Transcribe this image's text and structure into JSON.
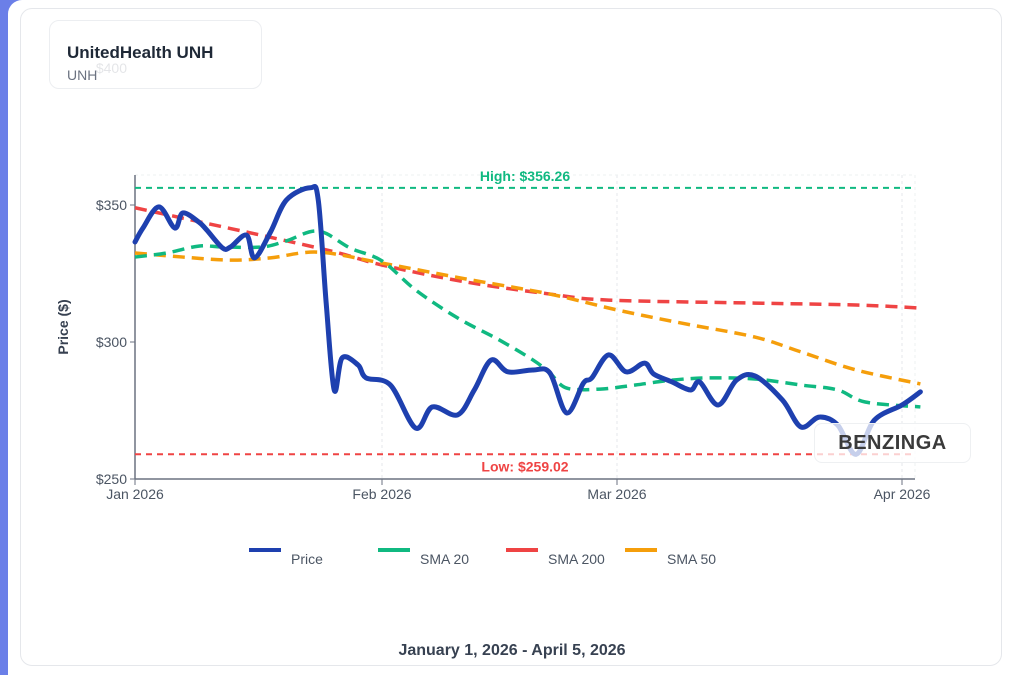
{
  "header": {
    "title": "UnitedHealth UNH",
    "ticker": "UNH"
  },
  "footer": {
    "date_range": "January 1, 2026 - April 5, 2026"
  },
  "watermark": "BENZINGA",
  "chart_data": {
    "type": "line",
    "ylabel": "Price ($)",
    "xlabel": "",
    "ylim": [
      250,
      361
    ],
    "yticks": [
      {
        "v": 250,
        "label": "$250"
      },
      {
        "v": 300,
        "label": "$300"
      },
      {
        "v": 350,
        "label": "$350"
      },
      {
        "v": 400,
        "label": "$400"
      }
    ],
    "xticks": [
      {
        "date": "2026-01-01",
        "label": "Jan 2026"
      },
      {
        "date": "2026-02-01",
        "label": "Feb 2026"
      },
      {
        "date": "2026-03-01",
        "label": "Mar 2026"
      },
      {
        "date": "2026-04-01",
        "label": "Apr 2026"
      }
    ],
    "grid": true,
    "legend_position": "bottom",
    "high": {
      "value": 356.26,
      "label": "High: $356.26",
      "color": "#10b981"
    },
    "low": {
      "value": 259.02,
      "label": "Low: $259.02",
      "color": "#ef4444"
    },
    "series": [
      {
        "name": "Price",
        "color": "#1e40af",
        "dashed": false,
        "points": [
          [
            "2026-01-01",
            336.5
          ],
          [
            "2026-01-02",
            341.6
          ],
          [
            "2026-01-04",
            349.3
          ],
          [
            "2026-01-06",
            341.6
          ],
          [
            "2026-01-07",
            347.1
          ],
          [
            "2026-01-09",
            343.8
          ],
          [
            "2026-01-10",
            340.9
          ],
          [
            "2026-01-12",
            334.3
          ],
          [
            "2026-01-13",
            334.7
          ],
          [
            "2026-01-15",
            339.0
          ],
          [
            "2026-01-16",
            330.7
          ],
          [
            "2026-01-18",
            340.1
          ],
          [
            "2026-01-20",
            351.8
          ],
          [
            "2026-01-23",
            356.3
          ],
          [
            "2026-01-24",
            351.8
          ],
          [
            "2026-01-25",
            314.0
          ],
          [
            "2026-01-26",
            282.5
          ],
          [
            "2026-01-27",
            294.2
          ],
          [
            "2026-01-29",
            291.6
          ],
          [
            "2026-01-30",
            286.9
          ],
          [
            "2026-02-02",
            284.3
          ],
          [
            "2026-02-05",
            268.6
          ],
          [
            "2026-02-07",
            276.3
          ],
          [
            "2026-02-10",
            273.4
          ],
          [
            "2026-02-12",
            282.5
          ],
          [
            "2026-02-14",
            293.4
          ],
          [
            "2026-02-16",
            289.1
          ],
          [
            "2026-02-19",
            289.8
          ],
          [
            "2026-02-21",
            288.7
          ],
          [
            "2026-02-23",
            274.1
          ],
          [
            "2026-02-25",
            285.0
          ],
          [
            "2026-02-26",
            286.9
          ],
          [
            "2026-02-28",
            295.3
          ],
          [
            "2026-03-02",
            289.1
          ],
          [
            "2026-03-04",
            292.3
          ],
          [
            "2026-03-05",
            288.3
          ],
          [
            "2026-03-07",
            285.4
          ],
          [
            "2026-03-09",
            282.5
          ],
          [
            "2026-03-10",
            285.4
          ],
          [
            "2026-03-12",
            277.0
          ],
          [
            "2026-03-14",
            286.1
          ],
          [
            "2026-03-16",
            287.6
          ],
          [
            "2026-03-19",
            278.8
          ],
          [
            "2026-03-21",
            269.0
          ],
          [
            "2026-03-23",
            272.6
          ],
          [
            "2026-03-25",
            269.7
          ],
          [
            "2026-03-27",
            259.0
          ],
          [
            "2026-03-29",
            271.5
          ],
          [
            "2026-04-01",
            277.0
          ],
          [
            "2026-04-03",
            281.8
          ]
        ]
      },
      {
        "name": "SMA 20",
        "color": "#10b981",
        "dashed": true,
        "points": [
          [
            "2026-01-01",
            331.0
          ],
          [
            "2026-01-05",
            332.5
          ],
          [
            "2026-01-09",
            335.0
          ],
          [
            "2026-01-12",
            334.7
          ],
          [
            "2026-01-17",
            334.7
          ],
          [
            "2026-01-20",
            336.9
          ],
          [
            "2026-01-24",
            340.5
          ],
          [
            "2026-01-28",
            334.3
          ],
          [
            "2026-02-01",
            329.6
          ],
          [
            "2026-02-05",
            319.0
          ],
          [
            "2026-02-10",
            308.8
          ],
          [
            "2026-02-15",
            300.7
          ],
          [
            "2026-02-19",
            293.4
          ],
          [
            "2026-02-21",
            288.7
          ],
          [
            "2026-02-23",
            283.2
          ],
          [
            "2026-02-27",
            282.8
          ],
          [
            "2026-03-03",
            284.3
          ],
          [
            "2026-03-07",
            286.1
          ],
          [
            "2026-03-11",
            286.9
          ],
          [
            "2026-03-16",
            286.5
          ],
          [
            "2026-03-21",
            284.3
          ],
          [
            "2026-03-25",
            282.5
          ],
          [
            "2026-03-28",
            278.1
          ],
          [
            "2026-04-03",
            276.3
          ]
        ]
      },
      {
        "name": "SMA 200",
        "color": "#ef4444",
        "dashed": true,
        "points": [
          [
            "2026-01-01",
            349.0
          ],
          [
            "2026-01-24",
            334.3
          ],
          [
            "2026-02-01",
            328.1
          ],
          [
            "2026-02-11",
            321.9
          ],
          [
            "2026-02-21",
            317.5
          ],
          [
            "2026-02-28",
            315.3
          ],
          [
            "2026-03-16",
            314.2
          ],
          [
            "2026-03-27",
            313.5
          ],
          [
            "2026-04-03",
            312.4
          ]
        ]
      },
      {
        "name": "SMA 50",
        "color": "#f59e0b",
        "dashed": true,
        "points": [
          [
            "2026-01-01",
            332.5
          ],
          [
            "2026-01-07",
            331.0
          ],
          [
            "2026-01-13",
            329.9
          ],
          [
            "2026-01-18",
            330.7
          ],
          [
            "2026-01-24",
            332.8
          ],
          [
            "2026-02-01",
            328.8
          ],
          [
            "2026-02-11",
            323.0
          ],
          [
            "2026-02-21",
            317.5
          ],
          [
            "2026-03-01",
            311.7
          ],
          [
            "2026-03-08",
            306.9
          ],
          [
            "2026-03-16",
            301.8
          ],
          [
            "2026-03-21",
            296.4
          ],
          [
            "2026-03-27",
            289.8
          ],
          [
            "2026-04-03",
            284.7
          ]
        ]
      }
    ]
  }
}
